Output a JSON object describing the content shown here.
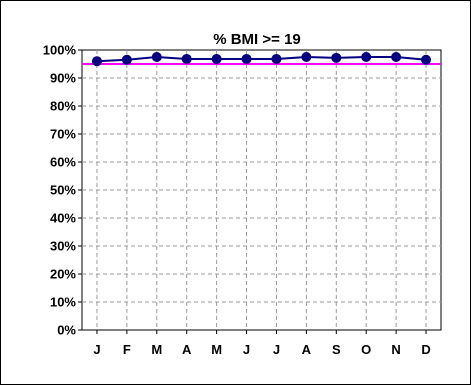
{
  "chart_data": {
    "type": "line",
    "title": "% BMI >= 19",
    "categories": [
      "J",
      "F",
      "M",
      "A",
      "M",
      "J",
      "J",
      "A",
      "S",
      "O",
      "N",
      "D"
    ],
    "series": [
      {
        "values": [
          96,
          96.5,
          97.5,
          96.8,
          96.8,
          96.8,
          96.8,
          97.5,
          97.2,
          97.5,
          97.5,
          96.5
        ],
        "color": "#000080"
      }
    ],
    "target_line": {
      "value": 95,
      "color": "#ff00ff"
    },
    "ylim": [
      0,
      100
    ],
    "y_ticks": [
      "0%",
      "10%",
      "20%",
      "30%",
      "40%",
      "50%",
      "60%",
      "70%",
      "80%",
      "90%",
      "100%"
    ],
    "grid": true,
    "xlabel": "",
    "ylabel": ""
  }
}
